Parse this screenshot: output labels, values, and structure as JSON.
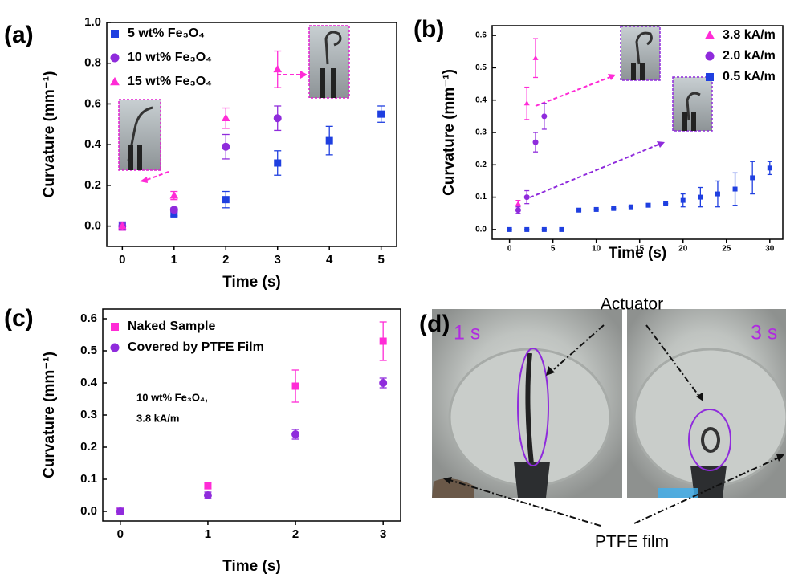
{
  "chart_data": [
    {
      "type": "scatter",
      "panel_label": "(a)",
      "x_label": "Time (s)",
      "y_label": "Curvature (mm⁻¹)",
      "xlim": [
        -0.3,
        5.3
      ],
      "xticks": [
        0,
        1,
        2,
        3,
        4,
        5
      ],
      "ylim": [
        -0.1,
        1.0
      ],
      "yticks": [
        {
          "value": 0,
          "label": "0.0"
        },
        0.2,
        0.4,
        0.6,
        0.8,
        {
          "value": 1,
          "label": "1.0"
        }
      ],
      "series": [
        {
          "name": "5 wt% Fe₃O₄",
          "color": "#1f3fe0",
          "marker": "square",
          "x": [
            0,
            1,
            2,
            3,
            4,
            5
          ],
          "values": [
            0,
            0.06,
            0.13,
            0.31,
            0.42,
            0.55
          ],
          "errors": [
            0.02,
            0.01,
            0.04,
            0.06,
            0.07,
            0.04
          ]
        },
        {
          "name": "10 wt% Fe₃O₄",
          "color": "#8f2bdc",
          "marker": "circle",
          "x": [
            0,
            1,
            2,
            3
          ],
          "values": [
            0,
            0.08,
            0.39,
            0.53
          ],
          "errors": [
            0.02,
            0.01,
            0.06,
            0.06
          ]
        },
        {
          "name": "15 wt% Fe₃O₄",
          "color": "#ff2bd6",
          "marker": "triangle",
          "x": [
            0,
            1,
            2,
            3
          ],
          "values": [
            0,
            0.15,
            0.53,
            0.77
          ],
          "errors": [
            0.02,
            0.02,
            0.05,
            0.09
          ]
        }
      ]
    },
    {
      "type": "scatter",
      "panel_label": "(b)",
      "x_label": "Time (s)",
      "y_label": "Curvature (mm⁻¹)",
      "xlim": [
        -2,
        31.5
      ],
      "xticks": [
        0,
        5,
        10,
        15,
        20,
        25,
        30
      ],
      "ylim": [
        -0.03,
        0.63
      ],
      "yticks": [
        {
          "value": 0,
          "label": "0.0"
        },
        0.1,
        0.2,
        0.3,
        0.4,
        0.5,
        0.6
      ],
      "series": [
        {
          "name": "3.8 kA/m",
          "color": "#ff2bd6",
          "marker": "triangle",
          "x": [
            1,
            2,
            3
          ],
          "values": [
            0.08,
            0.39,
            0.53
          ],
          "errors": [
            0.01,
            0.05,
            0.06
          ]
        },
        {
          "name": "2.0 kA/m",
          "color": "#8f2bdc",
          "marker": "circle",
          "x": [
            1,
            2,
            3,
            4
          ],
          "values": [
            0.06,
            0.1,
            0.27,
            0.35
          ],
          "errors": [
            0.01,
            0.02,
            0.03,
            0.04
          ]
        },
        {
          "name": "0.5 kA/m",
          "color": "#1f3fe0",
          "marker": "square",
          "x": [
            0,
            2,
            4,
            6,
            8,
            10,
            12,
            14,
            16,
            18,
            20,
            22,
            24,
            26,
            28,
            30
          ],
          "values": [
            0,
            0,
            0,
            0,
            0.06,
            0.062,
            0.065,
            0.07,
            0.075,
            0.08,
            0.09,
            0.1,
            0.11,
            0.125,
            0.16,
            0.19
          ],
          "errors": [
            0,
            0,
            0,
            0,
            0,
            0,
            0,
            0,
            0,
            0,
            0.02,
            0.03,
            0.04,
            0.05,
            0.05,
            0.02
          ]
        }
      ]
    },
    {
      "type": "scatter",
      "panel_label": "(c)",
      "x_label": "Time (s)",
      "y_label": "Curvature (mm⁻¹)",
      "xlim": [
        -0.2,
        3.2
      ],
      "xticks": [
        0,
        1,
        2,
        3
      ],
      "ylim": [
        -0.03,
        0.63
      ],
      "yticks": [
        {
          "value": 0,
          "label": "0.0"
        },
        0.1,
        0.2,
        0.3,
        0.4,
        0.5,
        0.6
      ],
      "annotations": [
        "10 wt% Fe₃O₄,",
        "3.8 kA/m"
      ],
      "series": [
        {
          "name": "Naked Sample",
          "color": "#ff2bd6",
          "marker": "square",
          "x": [
            0,
            1,
            2,
            3
          ],
          "values": [
            0,
            0.08,
            0.39,
            0.53
          ],
          "errors": [
            0.01,
            0.01,
            0.05,
            0.06
          ]
        },
        {
          "name": "Covered by PTFE Film",
          "color": "#8f2bdc",
          "marker": "circle",
          "x": [
            0,
            1,
            2,
            3
          ],
          "values": [
            0,
            0.05,
            0.24,
            0.4
          ],
          "errors": [
            0.01,
            0.01,
            0.015,
            0.015
          ]
        }
      ]
    }
  ],
  "panel_d": {
    "label": "(d)",
    "left_time": "1 s",
    "right_time": "3 s",
    "actuator": "Actuator",
    "film": "PTFE film"
  }
}
